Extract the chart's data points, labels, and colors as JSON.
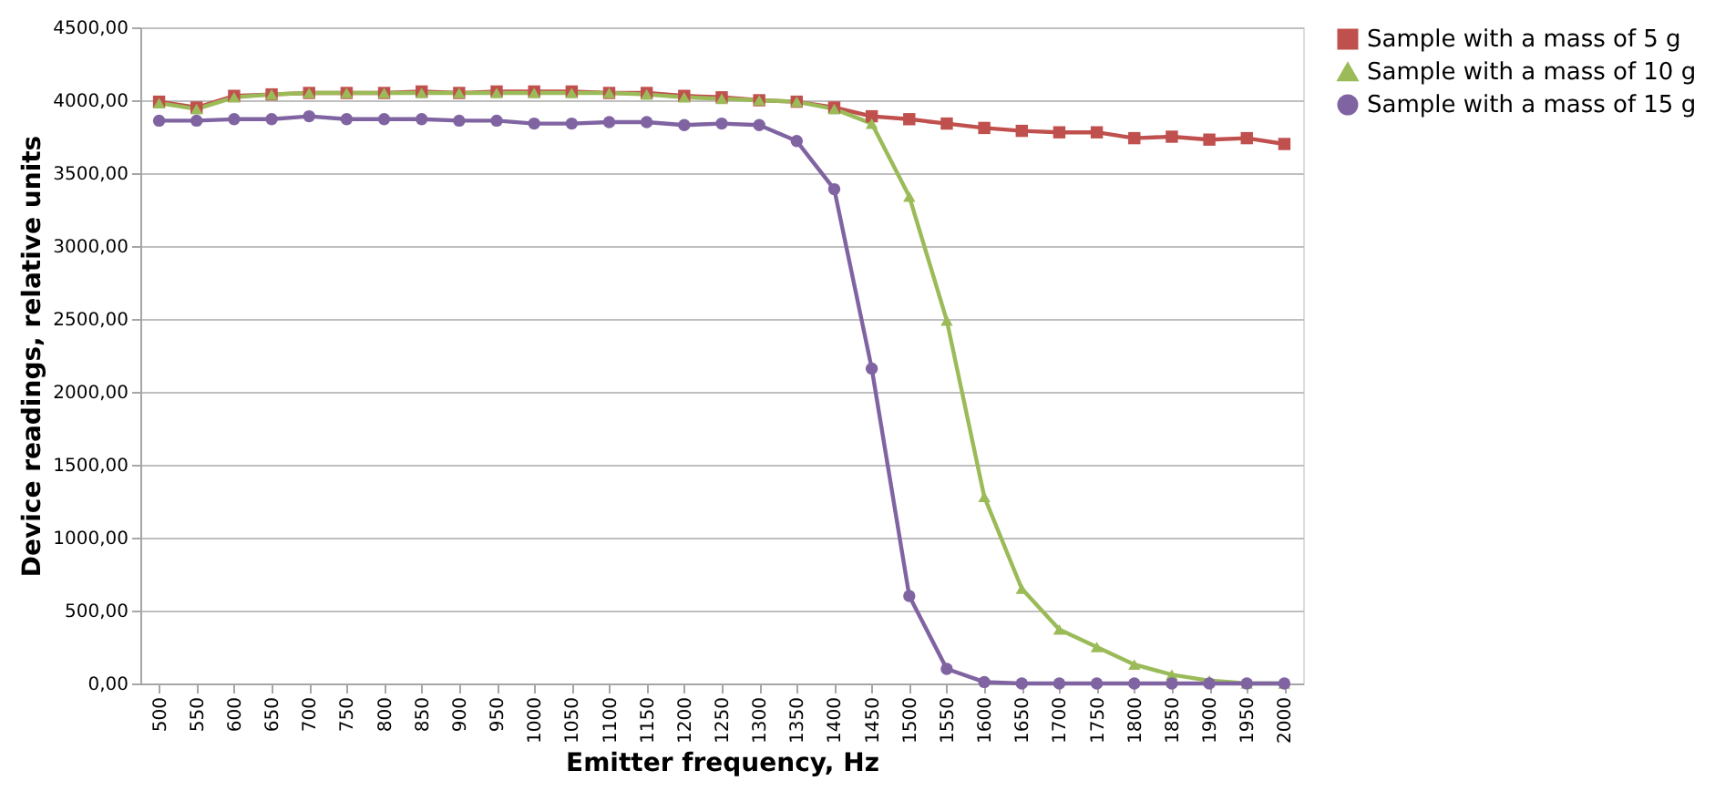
{
  "chart_data": {
    "type": "line",
    "xlabel": "Emitter frequency, Hz",
    "ylabel": "Device readings, relative units",
    "categories": [
      "500",
      "550",
      "600",
      "650",
      "700",
      "750",
      "800",
      "850",
      "900",
      "950",
      "1000",
      "1050",
      "1100",
      "1150",
      "1200",
      "1250",
      "1300",
      "1350",
      "1400",
      "1450",
      "1500",
      "1550",
      "1600",
      "1650",
      "1700",
      "1750",
      "1800",
      "1850",
      "1900",
      "1950",
      "2000"
    ],
    "series": [
      {
        "name": "Sample with a mass of 5 g",
        "color": "#c0504d",
        "marker": "square",
        "values": [
          3990,
          3950,
          4030,
          4040,
          4050,
          4050,
          4050,
          4060,
          4050,
          4060,
          4060,
          4060,
          4050,
          4050,
          4030,
          4020,
          4000,
          3990,
          3950,
          3890,
          3870,
          3840,
          3810,
          3790,
          3780,
          3780,
          3740,
          3750,
          3730,
          3740,
          3700
        ]
      },
      {
        "name": "Sample with a mass of 10 g",
        "color": "#9bbb59",
        "marker": "triangle",
        "values": [
          3980,
          3940,
          4020,
          4040,
          4050,
          4050,
          4050,
          4050,
          4050,
          4050,
          4050,
          4050,
          4050,
          4040,
          4020,
          4010,
          4000,
          3990,
          3940,
          3840,
          3340,
          2490,
          1280,
          650,
          370,
          250,
          130,
          60,
          20,
          0,
          0
        ]
      },
      {
        "name": "Sample with a mass of 15 g",
        "color": "#8064a2",
        "marker": "circle",
        "values": [
          3860,
          3860,
          3870,
          3870,
          3890,
          3870,
          3870,
          3870,
          3860,
          3860,
          3840,
          3840,
          3850,
          3850,
          3830,
          3840,
          3830,
          3720,
          3390,
          2160,
          600,
          100,
          10,
          0,
          0,
          0,
          0,
          0,
          0,
          0,
          0
        ]
      }
    ],
    "ylim": [
      0,
      4500
    ],
    "yticks": [
      {
        "value": 0,
        "label": "0,00"
      },
      {
        "value": 500,
        "label": "500,00"
      },
      {
        "value": 1000,
        "label": "1000,00"
      },
      {
        "value": 1500,
        "label": "1500,00"
      },
      {
        "value": 2000,
        "label": "2000,00"
      },
      {
        "value": 2500,
        "label": "2500,00"
      },
      {
        "value": 3000,
        "label": "3000,00"
      },
      {
        "value": 3500,
        "label": "3500,00"
      },
      {
        "value": 4000,
        "label": "4000,00"
      },
      {
        "value": 4500,
        "label": "4500,00"
      }
    ],
    "grid": "y",
    "legend": "right",
    "line_style": "solid"
  }
}
